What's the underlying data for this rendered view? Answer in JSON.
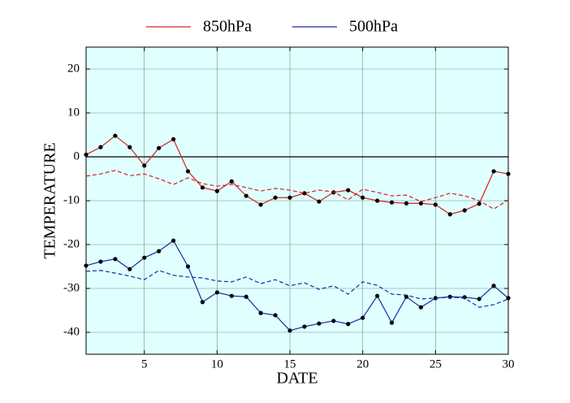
{
  "chart_data": {
    "type": "line",
    "xlabel": "DATE",
    "ylabel": "TEMPERATURE",
    "x": [
      1,
      2,
      3,
      4,
      5,
      6,
      7,
      8,
      9,
      10,
      11,
      12,
      13,
      14,
      15,
      16,
      17,
      18,
      19,
      20,
      21,
      22,
      23,
      24,
      25,
      26,
      27,
      28,
      29,
      30
    ],
    "xlim": [
      1,
      30
    ],
    "xticks": [
      5,
      10,
      15,
      20,
      25,
      30
    ],
    "ylim": [
      -45,
      25
    ],
    "yticks": [
      -40,
      -30,
      -20,
      -10,
      0,
      10,
      20
    ],
    "grid": true,
    "zero_line": true,
    "background": "#e0ffff",
    "marker_color": "#000000",
    "series": [
      {
        "name": "850hPa",
        "color": "#d62020",
        "markers": true,
        "values": [
          0.5,
          2.2,
          4.8,
          2.2,
          -2,
          2,
          4,
          -3.3,
          -7,
          -7.8,
          -5.6,
          -8.9,
          -10.9,
          -9.3,
          -9.3,
          -8.3,
          -10.2,
          -8.1,
          -7.6,
          -9.3,
          -10,
          -10.4,
          -10.6,
          -10.6,
          -10.9,
          -13.1,
          -12.2,
          -10.7,
          -3.3,
          -3.9
        ]
      },
      {
        "color": "#d62020",
        "dashed": true,
        "values": [
          -4.4,
          -3.9,
          -3.1,
          -4.3,
          -3.9,
          -5,
          -6.3,
          -4.8,
          -6.1,
          -6.7,
          -6.3,
          -7,
          -7.8,
          -7.2,
          -7.6,
          -8.3,
          -7.6,
          -8,
          -9.8,
          -7.4,
          -8.1,
          -8.9,
          -8.7,
          -10.2,
          -9.3,
          -8.3,
          -8.9,
          -10,
          -11.9,
          -9.8
        ]
      },
      {
        "name": "500hPa",
        "color": "#1a2aa0",
        "markers": true,
        "values": [
          -24.8,
          -23.9,
          -23.3,
          -25.6,
          -23,
          -21.5,
          -19.1,
          -25,
          -33.1,
          -30.9,
          -31.7,
          -31.9,
          -35.6,
          -36.1,
          -39.6,
          -38.7,
          -38,
          -37.4,
          -38.1,
          -36.7,
          -31.7,
          -37.8,
          -31.9,
          -34.3,
          -32.2,
          -31.9,
          -32,
          -32.4,
          -29.4,
          -32.2
        ]
      },
      {
        "color": "#1a2aa0",
        "dashed": true,
        "values": [
          -26.1,
          -25.9,
          -26.5,
          -27.2,
          -28,
          -25.9,
          -27,
          -27.4,
          -27.6,
          -28.3,
          -28.5,
          -27.4,
          -28.9,
          -28,
          -29.4,
          -28.7,
          -30.2,
          -29.4,
          -31.3,
          -28.5,
          -29.3,
          -31.3,
          -31.5,
          -32.4,
          -32.2,
          -32,
          -32.2,
          -34.3,
          -33.7,
          -32.4
        ]
      }
    ]
  }
}
